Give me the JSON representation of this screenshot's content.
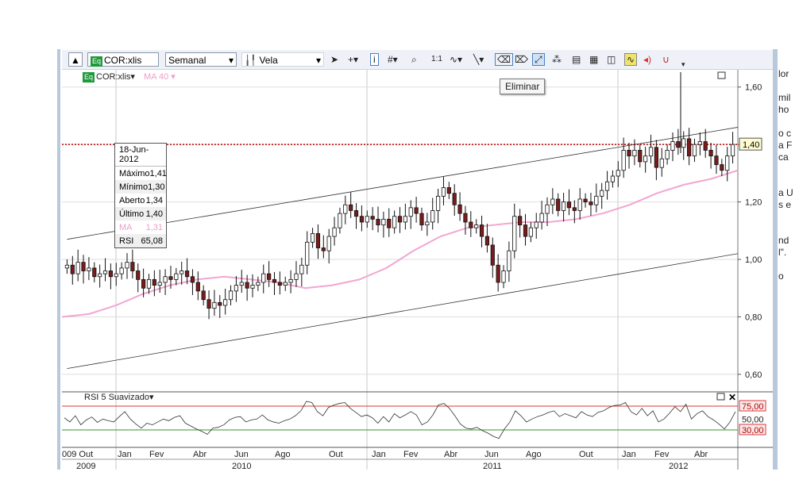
{
  "toolbar": {
    "symbol": "COR:xlis",
    "period": "Semanal",
    "style": "Vela",
    "badge": "Eq",
    "ratio": "1:1"
  },
  "tooltip": "Eliminar",
  "legend": {
    "symbol": "COR:xlis",
    "ma": "MA 40"
  },
  "infobox": {
    "date": "18-Jun-2012",
    "rows": [
      {
        "label": "Máximo",
        "value": "1,41"
      },
      {
        "label": "Mínimo",
        "value": "1,30"
      },
      {
        "label": "Aberto",
        "value": "1,34"
      },
      {
        "label": "Último",
        "value": "1,40"
      },
      {
        "label": "MA",
        "value": "1,31"
      },
      {
        "label": "RSI",
        "value": "65,08"
      }
    ]
  },
  "rsi_title": "RSI 5 Suavizado",
  "side_text": [
    "lor",
    "",
    "mil",
    "ho",
    "",
    "o c",
    "a F",
    "ca",
    "",
    "",
    "a U",
    "s e",
    "",
    "",
    "nd",
    "l\".",
    "",
    "o"
  ],
  "colors": {
    "up": "#ffffff",
    "down": "#7a1c1c",
    "ma": "#f2a6d2",
    "rsi_hi": "#d83a3a",
    "rsi_lo": "#2e9a2e",
    "hline": "#c00000"
  },
  "chart_data": [
    {
      "type": "candlestick",
      "ylabel": "",
      "ylim": [
        0.55,
        1.66
      ],
      "yticks": [
        "0,60",
        "0,80",
        "1,00",
        "1,20",
        "1,40",
        "1,60"
      ],
      "ytick_values": [
        0.6,
        0.8,
        1.0,
        1.2,
        1.4,
        1.6
      ],
      "current_price_label": "1,40",
      "current_price": 1.4,
      "month_labels": [
        "009 Out",
        "Jan",
        "Fev",
        "Abr",
        "Jun",
        "Ago",
        "Out",
        "Jan",
        "Fev",
        "Abr",
        "Jun",
        "Ago",
        "Out",
        "Jan",
        "Fev",
        "Abr"
      ],
      "year_labels": [
        "2009",
        "2010",
        "2011",
        "2012"
      ],
      "closes": [
        0.98,
        0.95,
        0.99,
        0.96,
        0.97,
        0.94,
        0.95,
        0.96,
        0.94,
        0.95,
        0.97,
        0.99,
        0.96,
        0.93,
        0.9,
        0.93,
        0.91,
        0.92,
        0.94,
        0.93,
        0.95,
        0.96,
        0.94,
        0.92,
        0.89,
        0.86,
        0.83,
        0.85,
        0.84,
        0.86,
        0.89,
        0.91,
        0.92,
        0.9,
        0.91,
        0.92,
        0.95,
        0.93,
        0.92,
        0.91,
        0.92,
        0.93,
        0.95,
        0.98,
        1.06,
        1.09,
        1.04,
        1.03,
        1.08,
        1.11,
        1.16,
        1.19,
        1.17,
        1.15,
        1.13,
        1.15,
        1.14,
        1.12,
        1.14,
        1.11,
        1.15,
        1.13,
        1.15,
        1.18,
        1.16,
        1.12,
        1.13,
        1.17,
        1.22,
        1.25,
        1.23,
        1.19,
        1.16,
        1.13,
        1.11,
        1.12,
        1.08,
        1.05,
        0.98,
        0.92,
        0.96,
        1.03,
        1.15,
        1.12,
        1.08,
        1.11,
        1.13,
        1.16,
        1.19,
        1.21,
        1.17,
        1.2,
        1.18,
        1.17,
        1.21,
        1.2,
        1.19,
        1.22,
        1.24,
        1.27,
        1.29,
        1.31,
        1.38,
        1.36,
        1.38,
        1.34,
        1.36,
        1.39,
        1.32,
        1.35,
        1.38,
        1.41,
        1.39,
        1.42,
        1.36,
        1.4,
        1.41,
        1.38,
        1.36,
        1.33,
        1.31,
        1.36,
        1.4
      ],
      "ma": [
        0.8,
        0.81,
        0.84,
        0.88,
        0.91,
        0.93,
        0.94,
        0.93,
        0.92,
        0.9,
        0.91,
        0.93,
        0.97,
        1.03,
        1.08,
        1.11,
        1.12,
        1.13,
        1.13,
        1.14,
        1.16,
        1.19,
        1.23,
        1.26,
        1.28,
        1.31
      ],
      "channel_upper": [
        [
          0,
          1.07
        ],
        [
          122,
          1.46
        ]
      ],
      "channel_lower": [
        [
          0,
          0.62
        ],
        [
          122,
          1.02
        ]
      ],
      "resistance": 1.4
    },
    {
      "type": "line",
      "title": "RSI 5 Suavizado",
      "ylim": [
        0,
        100
      ],
      "levels": [
        {
          "label": "75,00",
          "value": 75
        },
        {
          "label": "50,00",
          "value": 50
        },
        {
          "label": "30,00",
          "value": 30
        }
      ],
      "values": [
        55,
        45,
        60,
        38,
        50,
        57,
        44,
        52,
        48,
        45,
        58,
        70,
        52,
        40,
        30,
        42,
        38,
        45,
        52,
        48,
        56,
        60,
        42,
        35,
        28,
        22,
        15,
        30,
        32,
        38,
        50,
        56,
        58,
        45,
        50,
        52,
        62,
        50,
        45,
        42,
        48,
        52,
        60,
        72,
        95,
        92,
        70,
        60,
        80,
        86,
        90,
        92,
        78,
        68,
        58,
        62,
        55,
        42,
        58,
        45,
        65,
        55,
        62,
        70,
        62,
        38,
        45,
        62,
        86,
        90,
        78,
        60,
        40,
        30,
        28,
        32,
        24,
        18,
        10,
        5,
        28,
        45,
        72,
        60,
        45,
        52,
        58,
        62,
        68,
        72,
        58,
        65,
        60,
        55,
        70,
        62,
        58,
        68,
        72,
        80,
        85,
        86,
        92,
        70,
        62,
        78,
        60,
        72,
        45,
        52,
        66,
        82,
        70,
        88,
        52,
        65,
        72,
        58,
        50,
        40,
        28,
        45,
        70
      ]
    }
  ]
}
